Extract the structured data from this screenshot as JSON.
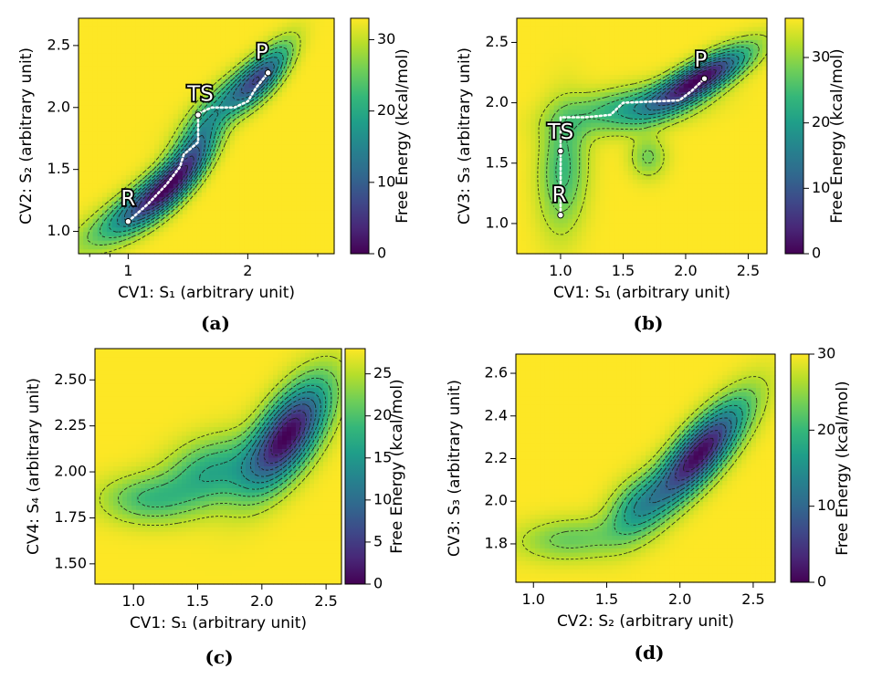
{
  "colors": {
    "viridis": [
      "#440154",
      "#482878",
      "#3e4989",
      "#31688e",
      "#26828e",
      "#1f9e89",
      "#35b779",
      "#6ece58",
      "#b5de2b",
      "#fde725"
    ],
    "background": "#fde725",
    "contour": "#1a1a1a",
    "path": "#ffffff"
  },
  "chart_data": [
    {
      "panel": "(a)",
      "type": "heatmap",
      "xlabel": "CV1: S₁ (arbitrary unit)",
      "ylabel": "CV2: S₂ (arbitrary unit)",
      "xscale": "log",
      "xlim": [
        0.75,
        3.3
      ],
      "ylim": [
        0.82,
        2.72
      ],
      "xticks": [
        {
          "value": 1,
          "label": "1"
        },
        {
          "value": 2,
          "label": "2"
        }
      ],
      "yticks": [
        {
          "value": 1.0,
          "label": "1.0"
        },
        {
          "value": 1.5,
          "label": "1.5"
        },
        {
          "value": 2.0,
          "label": "2.0"
        },
        {
          "value": 2.5,
          "label": "2.5"
        }
      ],
      "colorbar": {
        "label": "Free Energy (kcal/mol)",
        "min": 0,
        "max": 33,
        "ticks": [
          0,
          10,
          20,
          30
        ]
      },
      "contour_levels": 9,
      "wells": [
        {
          "x": 1.22,
          "y": 1.32,
          "depth": 33,
          "sx": 0.24,
          "sy": 0.24,
          "rho": 0.86
        },
        {
          "x": 2.1,
          "y": 2.22,
          "depth": 27,
          "sx": 0.3,
          "sy": 0.19,
          "rho": 0.78
        },
        {
          "x": 1.5,
          "y": 1.75,
          "depth": 14,
          "sx": 0.16,
          "sy": 0.2,
          "rho": 0.7
        }
      ],
      "path": [
        [
          1.0,
          1.08
        ],
        [
          1.12,
          1.22
        ],
        [
          1.25,
          1.38
        ],
        [
          1.35,
          1.52
        ],
        [
          1.38,
          1.62
        ],
        [
          1.5,
          1.72
        ],
        [
          1.5,
          1.95
        ],
        [
          1.62,
          2.0
        ],
        [
          1.85,
          2.0
        ],
        [
          2.0,
          2.05
        ],
        [
          2.1,
          2.16
        ],
        [
          2.25,
          2.28
        ]
      ],
      "states": [
        {
          "label": "R",
          "x": 1.0,
          "y": 1.08,
          "text_x": 1.0,
          "text_y": 1.26
        },
        {
          "label": "TS",
          "x": 1.5,
          "y": 1.94,
          "text_x": 1.52,
          "text_y": 2.1
        },
        {
          "label": "P",
          "x": 2.25,
          "y": 2.28,
          "text_x": 2.17,
          "text_y": 2.44
        }
      ]
    },
    {
      "panel": "(b)",
      "type": "heatmap",
      "xlabel": "CV1: S₁ (arbitrary unit)",
      "ylabel": "CV3: S₃ (arbitrary unit)",
      "xscale": "linear",
      "xlim": [
        0.65,
        2.65
      ],
      "ylim": [
        0.75,
        2.7
      ],
      "xticks": [
        {
          "value": 1.0,
          "label": "1.0"
        },
        {
          "value": 1.5,
          "label": "1.5"
        },
        {
          "value": 2.0,
          "label": "2.0"
        },
        {
          "value": 2.5,
          "label": "2.5"
        }
      ],
      "yticks": [
        {
          "value": 1.0,
          "label": "1.0"
        },
        {
          "value": 1.5,
          "label": "1.5"
        },
        {
          "value": 2.0,
          "label": "2.0"
        },
        {
          "value": 2.5,
          "label": "2.5"
        }
      ],
      "colorbar": {
        "label": "Free Energy (kcal/mol)",
        "min": 0,
        "max": 36,
        "ticks": [
          0,
          10,
          20,
          30
        ]
      },
      "contour_levels": 9,
      "wells": [
        {
          "x": 2.12,
          "y": 2.2,
          "depth": 36,
          "sx": 0.26,
          "sy": 0.17,
          "rho": 0.8
        },
        {
          "x": 1.55,
          "y": 1.95,
          "depth": 14,
          "sx": 0.35,
          "sy": 0.13,
          "rho": 0.4
        },
        {
          "x": 1.02,
          "y": 1.45,
          "depth": 12,
          "sx": 0.13,
          "sy": 0.35,
          "rho": 0.1
        },
        {
          "x": 1.7,
          "y": 1.55,
          "depth": 8,
          "sx": 0.1,
          "sy": 0.12,
          "rho": 0.0
        }
      ],
      "path": [
        [
          1.0,
          1.07
        ],
        [
          1.0,
          1.6
        ],
        [
          1.0,
          1.88
        ],
        [
          1.2,
          1.88
        ],
        [
          1.4,
          1.9
        ],
        [
          1.5,
          2.0
        ],
        [
          1.95,
          2.02
        ],
        [
          2.05,
          2.1
        ],
        [
          2.15,
          2.2
        ]
      ],
      "states": [
        {
          "label": "R",
          "x": 1.0,
          "y": 1.07,
          "text_x": 0.99,
          "text_y": 1.23
        },
        {
          "label": "TS",
          "x": 1.0,
          "y": 1.6,
          "text_x": 1.0,
          "text_y": 1.75
        },
        {
          "label": "P",
          "x": 2.15,
          "y": 2.2,
          "text_x": 2.12,
          "text_y": 2.35
        }
      ]
    },
    {
      "panel": "(c)",
      "type": "heatmap",
      "xlabel": "CV1: S₁ (arbitrary unit)",
      "ylabel": "CV4: S₄ (arbitrary unit)",
      "xscale": "linear",
      "xlim": [
        0.7,
        2.62
      ],
      "ylim": [
        1.39,
        2.67
      ],
      "xticks": [
        {
          "value": 1.0,
          "label": "1.0"
        },
        {
          "value": 1.5,
          "label": "1.5"
        },
        {
          "value": 2.0,
          "label": "2.0"
        },
        {
          "value": 2.5,
          "label": "2.5"
        }
      ],
      "yticks": [
        {
          "value": 1.5,
          "label": "1.50"
        },
        {
          "value": 1.75,
          "label": "1.75"
        },
        {
          "value": 2.0,
          "label": "2.00"
        },
        {
          "value": 2.25,
          "label": "2.25"
        },
        {
          "value": 2.5,
          "label": "2.50"
        }
      ],
      "colorbar": {
        "label": "Free Energy (kcal/mol)",
        "min": 0,
        "max": 28,
        "ticks": [
          0,
          5,
          10,
          15,
          20,
          25
        ]
      },
      "contour_levels": 9,
      "wells": [
        {
          "x": 2.2,
          "y": 2.2,
          "depth": 28,
          "sx": 0.22,
          "sy": 0.2,
          "rho": 0.65
        },
        {
          "x": 1.6,
          "y": 2.0,
          "depth": 11,
          "sx": 0.25,
          "sy": 0.13,
          "rho": 0.3
        },
        {
          "x": 1.1,
          "y": 1.85,
          "depth": 8,
          "sx": 0.25,
          "sy": 0.09,
          "rho": 0.0
        }
      ],
      "path": [],
      "states": []
    },
    {
      "panel": "(d)",
      "type": "heatmap",
      "xlabel": "CV2: S₂ (arbitrary unit)",
      "ylabel": "CV3: S₃ (arbitrary unit)",
      "xscale": "linear",
      "xlim": [
        0.88,
        2.65
      ],
      "ylim": [
        1.62,
        2.69
      ],
      "xticks": [
        {
          "value": 1.0,
          "label": "1.0"
        },
        {
          "value": 1.5,
          "label": "1.5"
        },
        {
          "value": 2.0,
          "label": "2.0"
        },
        {
          "value": 2.5,
          "label": "2.5"
        }
      ],
      "yticks": [
        {
          "value": 1.8,
          "label": "1.8"
        },
        {
          "value": 2.0,
          "label": "2.0"
        },
        {
          "value": 2.2,
          "label": "2.2"
        },
        {
          "value": 2.4,
          "label": "2.4"
        },
        {
          "value": 2.6,
          "label": "2.6"
        }
      ],
      "colorbar": {
        "label": "Free Energy (kcal/mol)",
        "min": 0,
        "max": 30,
        "ticks": [
          0,
          10,
          20,
          30
        ]
      },
      "contour_levels": 9,
      "wells": [
        {
          "x": 2.13,
          "y": 2.22,
          "depth": 30,
          "sx": 0.22,
          "sy": 0.17,
          "rho": 0.8
        },
        {
          "x": 1.7,
          "y": 1.97,
          "depth": 11,
          "sx": 0.14,
          "sy": 0.1,
          "rho": 0.4
        },
        {
          "x": 1.25,
          "y": 1.82,
          "depth": 7,
          "sx": 0.25,
          "sy": 0.07,
          "rho": 0.1
        }
      ],
      "path": [],
      "states": []
    }
  ]
}
